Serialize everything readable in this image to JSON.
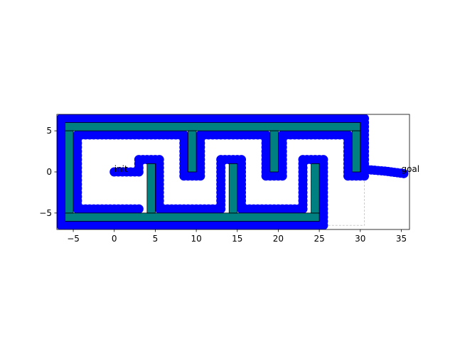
{
  "chart_data": {
    "type": "scatter",
    "title": "",
    "xlabel": "",
    "ylabel": "",
    "xlim": [
      -7,
      36
    ],
    "ylim": [
      -7,
      7
    ],
    "xticks": [
      -5,
      0,
      5,
      10,
      15,
      20,
      25,
      30,
      35
    ],
    "yticks": [
      -5,
      0,
      5
    ],
    "grid": false,
    "colors": {
      "obstacle_fill": "#008080",
      "obstacle_edge": "#000000",
      "path": "#0000ff",
      "boundary": "#cccccc"
    },
    "obstacles": [
      {
        "x": -6,
        "y": 5,
        "w": 36,
        "h": 1
      },
      {
        "x": -6,
        "y": -6,
        "w": 31,
        "h": 1
      },
      {
        "x": -6,
        "y": -5,
        "w": 1,
        "h": 10
      },
      {
        "x": 4,
        "y": -5,
        "w": 1,
        "h": 6
      },
      {
        "x": 9,
        "y": 0,
        "w": 1,
        "h": 5
      },
      {
        "x": 14,
        "y": -5,
        "w": 1,
        "h": 6
      },
      {
        "x": 19,
        "y": 0,
        "w": 1,
        "h": 5
      },
      {
        "x": 24,
        "y": -5,
        "w": 1,
        "h": 6
      },
      {
        "x": 29,
        "y": 0,
        "w": 1,
        "h": 5
      }
    ],
    "path": [
      [
        0,
        0
      ],
      [
        3,
        0
      ],
      [
        3,
        1.5
      ],
      [
        5.5,
        1.5
      ],
      [
        5.5,
        -4.5
      ],
      [
        13,
        -4.5
      ],
      [
        13,
        1.5
      ],
      [
        15.5,
        1.5
      ],
      [
        15.5,
        -4.5
      ],
      [
        23,
        -4.5
      ],
      [
        23,
        1.5
      ],
      [
        25.5,
        1.5
      ],
      [
        25.5,
        -6.5
      ],
      [
        -6.5,
        -6.5
      ],
      [
        -6.5,
        6.5
      ],
      [
        30.5,
        6.5
      ],
      [
        30.5,
        -0.5
      ],
      [
        28.5,
        -0.5
      ],
      [
        28.5,
        4.5
      ],
      [
        20.5,
        4.5
      ],
      [
        20.5,
        -0.5
      ],
      [
        18.5,
        -0.5
      ],
      [
        18.5,
        4.5
      ],
      [
        10.5,
        4.5
      ],
      [
        10.5,
        -0.5
      ],
      [
        8.5,
        -0.5
      ],
      [
        8.5,
        4.5
      ],
      [
        -4.5,
        4.5
      ],
      [
        -4.5,
        -4.5
      ],
      [
        3,
        -4.5
      ]
    ],
    "goal_path": [
      [
        30.5,
        0.3
      ],
      [
        33,
        0.1
      ],
      [
        35.3,
        -0.2
      ]
    ],
    "annotations": [
      {
        "text": "init",
        "x": 0,
        "y": 0
      },
      {
        "text": "goal",
        "x": 35,
        "y": 0
      }
    ]
  }
}
